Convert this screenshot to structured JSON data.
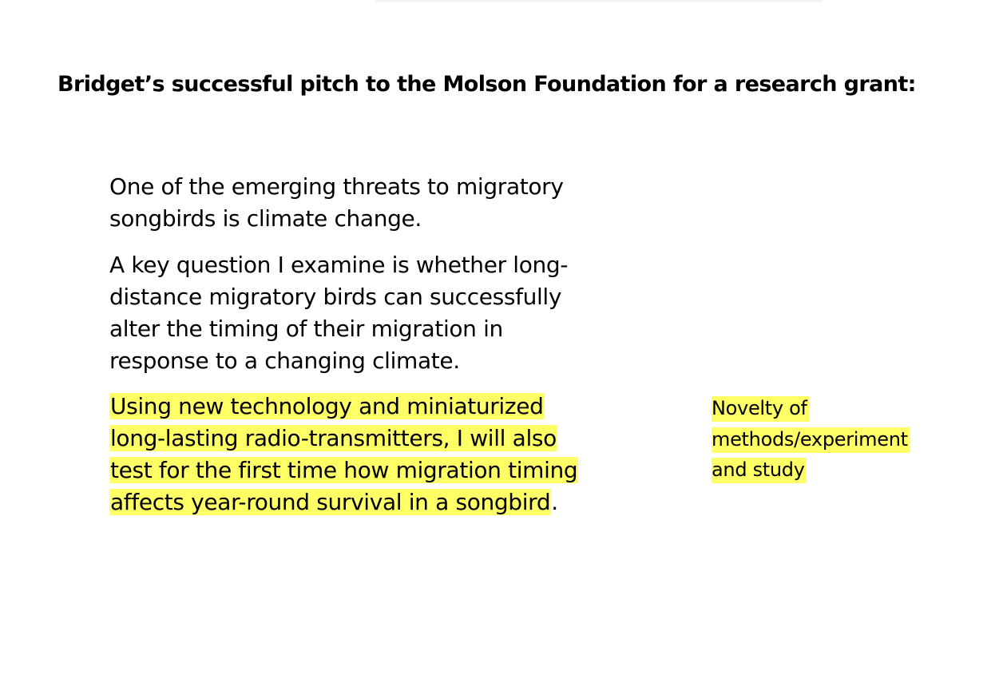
{
  "slide": {
    "title": "Bridget’s successful pitch to the Molson Foundation for a research grant:",
    "paragraphs": {
      "p1_line1": "One of the emerging threats to migratory",
      "p1_line2": "songbirds is climate change.",
      "p2_line1": "A key question I examine is whether long-",
      "p2_line2": "distance migratory birds can successfully",
      "p2_line3": "alter the timing of their migration in",
      "p2_line4": "response to a changing climate.",
      "p3_line1": "Using new technology and miniaturized",
      "p3_line2": "long-lasting radio-transmitters, I will also",
      "p3_line3": "test for the first time how migration timing",
      "p3_line4": "affects year-round survival in a songbird",
      "p3_end": "."
    },
    "note": {
      "line1": "Novelty of",
      "line2": "methods/experiment",
      "line3": "and study"
    },
    "colors": {
      "highlight": "#ffff66",
      "text": "#000000",
      "background": "#ffffff"
    }
  }
}
